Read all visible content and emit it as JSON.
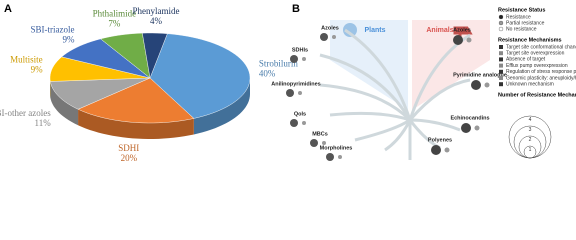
{
  "panels": {
    "a": "A",
    "b": "B"
  },
  "chart_data": {
    "type": "pie3d",
    "categories": [
      "Strobilurin",
      "SDHI",
      "SBI-other azoles",
      "Multisite",
      "SBI-triazole",
      "Phthalimide",
      "Phenylamide"
    ],
    "values": [
      40,
      20,
      11,
      9,
      9,
      7,
      4
    ],
    "value_labels": [
      "40%",
      "20%",
      "11%",
      "9%",
      "9%",
      "7%",
      "4%"
    ],
    "colors": [
      "#5b9bd5",
      "#ed7d31",
      "#a5a5a5",
      "#ffc000",
      "#4472c4",
      "#70ad47",
      "#264478"
    ]
  },
  "diagram": {
    "kingdoms": [
      "Plants",
      "Animals"
    ],
    "plant_groups": [
      "Azoles",
      "SDHIs",
      "Anilinopyrimidines",
      "QoIs",
      "MBCs",
      "Morpholines"
    ],
    "animal_groups": [
      "Azoles",
      "Pyrimidine analogue",
      "Echinocandins",
      "Polyenes"
    ],
    "status_title": "Resistance Status",
    "status": [
      "Resistance",
      "Partial resistance",
      "No resistance"
    ],
    "mechanisms_title": "Resistance Mechanisms",
    "mechanisms": [
      "Target site conformational changes",
      "Target site overexpression",
      "Absence of target",
      "Efflux pump overexpression",
      "Regulation of stress response pathways",
      "Genomic plasticity: aneuploidy/hypermutation",
      "Unknown mechanism"
    ],
    "count_title": "Number of Resistance Mechanisms",
    "counts": [
      1,
      2,
      3,
      4
    ]
  }
}
